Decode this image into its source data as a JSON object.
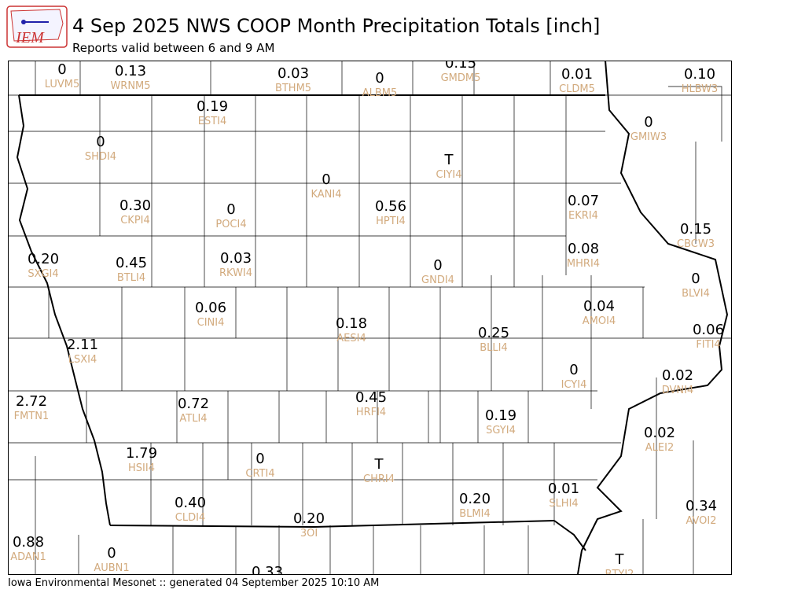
{
  "header": {
    "logo_text": "IEM",
    "title": "4 Sep 2025 NWS COOP Month Precipitation Totals [inch]",
    "subtitle": "Reports valid between 6 and 9 AM"
  },
  "stations": [
    {
      "value": "0",
      "id": "LUVM5"
    },
    {
      "value": "0.13",
      "id": "WRNM5"
    },
    {
      "value": "0.03",
      "id": "BTHM5"
    },
    {
      "value": "0",
      "id": "ALBM5"
    },
    {
      "value": "0.15",
      "id": "GMDM5"
    },
    {
      "value": "0.01",
      "id": "CLDM5"
    },
    {
      "value": "0.10",
      "id": "HLBW3"
    },
    {
      "value": "0.19",
      "id": "ESTI4"
    },
    {
      "value": "0",
      "id": "SHDI4"
    },
    {
      "value": "T",
      "id": "CIYI4"
    },
    {
      "value": "0",
      "id": "GMIW3"
    },
    {
      "value": "0",
      "id": "KANI4"
    },
    {
      "value": "0.30",
      "id": "CKPI4"
    },
    {
      "value": "0",
      "id": "POCI4"
    },
    {
      "value": "0.56",
      "id": "HPTI4"
    },
    {
      "value": "0.07",
      "id": "EKRI4"
    },
    {
      "value": "0.15",
      "id": "CBCW3"
    },
    {
      "value": "0.20",
      "id": "SXGI4"
    },
    {
      "value": "0.45",
      "id": "BTLI4"
    },
    {
      "value": "0.03",
      "id": "RKWI4"
    },
    {
      "value": "0",
      "id": "GNDI4"
    },
    {
      "value": "0.08",
      "id": "MHRI4"
    },
    {
      "value": "0",
      "id": "BLVI4"
    },
    {
      "value": "0.06",
      "id": "CINI4"
    },
    {
      "value": "0.18",
      "id": "AESI4"
    },
    {
      "value": "0.25",
      "id": "BLLI4"
    },
    {
      "value": "0.04",
      "id": "AMOI4"
    },
    {
      "value": "0.06",
      "id": "FITI4"
    },
    {
      "value": "2.11",
      "id": "LSXI4"
    },
    {
      "value": "0",
      "id": "ICYI4"
    },
    {
      "value": "0.02",
      "id": "DVNI4"
    },
    {
      "value": "2.72",
      "id": "FMTN1"
    },
    {
      "value": "0.72",
      "id": "ATLI4"
    },
    {
      "value": "0.45",
      "id": "HRFI4"
    },
    {
      "value": "0.19",
      "id": "SGYI4"
    },
    {
      "value": "0.02",
      "id": "ALEI2"
    },
    {
      "value": "1.79",
      "id": "HSII4"
    },
    {
      "value": "0",
      "id": "CRTI4"
    },
    {
      "value": "T",
      "id": "CHRI4"
    },
    {
      "value": "0.40",
      "id": "CLDI4"
    },
    {
      "value": "0.20",
      "id": "BLMI4"
    },
    {
      "value": "0.01",
      "id": "SLHI4"
    },
    {
      "value": "0.34",
      "id": "AVOI2"
    },
    {
      "value": "0.20",
      "id": "3OI"
    },
    {
      "value": "0.88",
      "id": "ADAN1"
    },
    {
      "value": "0",
      "id": "AUBN1"
    },
    {
      "value": "0.33"
    },
    {
      "value": "T",
      "id": "BTYI2"
    }
  ],
  "footer": "Iowa Environmental Mesonet :: generated 04 September 2025 10:10 AM"
}
